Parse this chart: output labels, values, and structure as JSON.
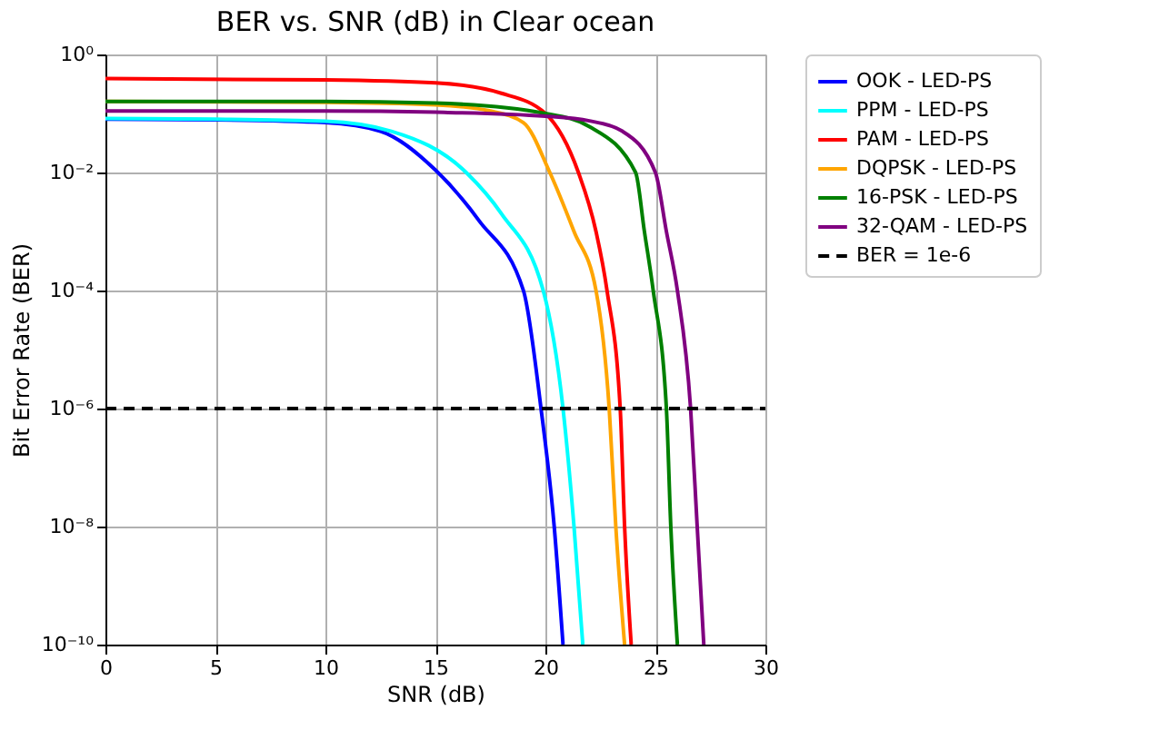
{
  "chart_data": {
    "type": "line",
    "title": "BER vs. SNR (dB) in Clear ocean",
    "xlabel": "SNR (dB)",
    "ylabel": "Bit Error Rate (BER)",
    "log": "y",
    "grid": true,
    "legend": "top right",
    "line_style": "solid",
    "xlim": [
      0,
      30
    ],
    "xticks": [
      0,
      5,
      10,
      15,
      20,
      25,
      30
    ],
    "ylim": [
      1e-10,
      1
    ],
    "yticks": [
      {
        "value": 1e-10,
        "label": "10⁻¹⁰"
      },
      {
        "value": 1e-08,
        "label": "10⁻⁸"
      },
      {
        "value": 1e-06,
        "label": "10⁻⁶"
      },
      {
        "value": 0.0001,
        "label": "10⁻⁴"
      },
      {
        "value": 0.01,
        "label": "10⁻²"
      },
      {
        "value": 1,
        "label": "10⁰"
      }
    ],
    "series": [
      {
        "name": "OOK - LED-PS",
        "color": "#0000ff",
        "x": [
          0,
          5,
          10,
          12.5,
          15,
          17,
          19,
          19.8,
          20.4,
          20.8
        ],
        "values": [
          0.08,
          0.078,
          0.07,
          0.05,
          0.011,
          0.0015,
          0.0001,
          1e-06,
          1e-08,
          1e-10
        ]
      },
      {
        "name": "PPM - LED-PS",
        "color": "#00ffff",
        "x": [
          0,
          5,
          10,
          13,
          16.4,
          18,
          19.9,
          20.8,
          21.3,
          21.7
        ],
        "values": [
          0.082,
          0.08,
          0.074,
          0.05,
          0.01,
          0.002,
          0.0001,
          1e-06,
          1e-08,
          1e-10
        ]
      },
      {
        "name": "PAM - LED-PS",
        "color": "#ff0000",
        "x": [
          0,
          10,
          15,
          18,
          20,
          21.5,
          22.3,
          22.8,
          23.4,
          23.6,
          23.9
        ],
        "values": [
          0.39,
          0.37,
          0.33,
          0.22,
          0.1,
          0.01,
          0.001,
          0.0001,
          1e-06,
          1e-08,
          1e-10
        ]
      },
      {
        "name": "DQPSK - LED-PS",
        "color": "#ffa500",
        "x": [
          0,
          10,
          15,
          17.5,
          19,
          20.2,
          21.3,
          22.3,
          22.9,
          23.2,
          23.6
        ],
        "values": [
          0.16,
          0.155,
          0.14,
          0.11,
          0.07,
          0.01,
          0.001,
          0.0001,
          1e-06,
          1e-08,
          1e-10
        ]
      },
      {
        "name": "16-PSK - LED-PS",
        "color": "#008000",
        "x": [
          0,
          10,
          15,
          20,
          22,
          24.1,
          24.5,
          24.9,
          25.5,
          25.7,
          26.0
        ],
        "values": [
          0.16,
          0.16,
          0.15,
          0.1,
          0.06,
          0.01,
          0.001,
          0.0001,
          1e-06,
          1e-08,
          1e-10
        ]
      },
      {
        "name": "32-QAM - LED-PS",
        "color": "#800080",
        "x": [
          0,
          10,
          15,
          20,
          22,
          23.5,
          25,
          25.5,
          26.0,
          26.6,
          26.9,
          27.2
        ],
        "values": [
          0.11,
          0.11,
          0.105,
          0.09,
          0.075,
          0.05,
          0.01,
          0.001,
          0.0001,
          1e-06,
          1e-08,
          1e-10
        ]
      }
    ],
    "ref_lines": [
      {
        "axis": "y",
        "value": 1e-06,
        "label": "BER = 1e-6",
        "color": "#000000",
        "line_style": "dashed"
      }
    ]
  }
}
